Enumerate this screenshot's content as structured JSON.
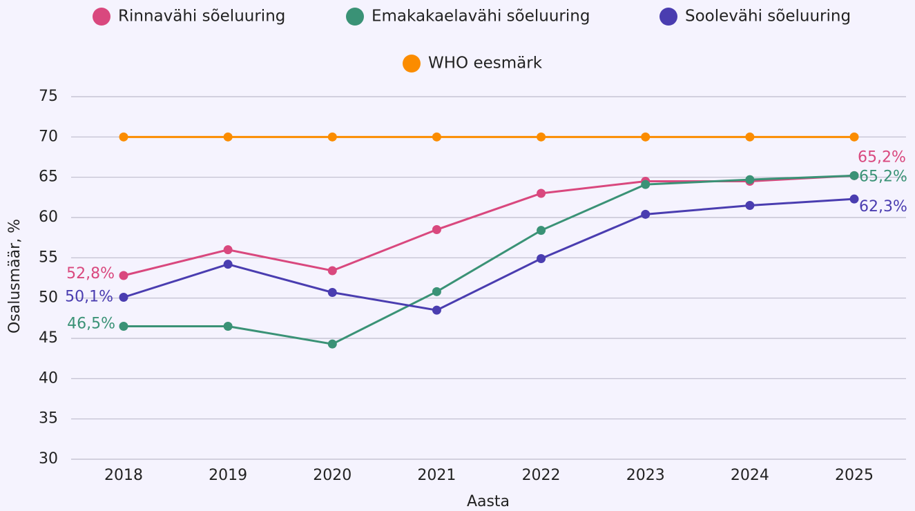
{
  "chart_data": {
    "type": "line",
    "xlabel": "Aasta",
    "ylabel": "Osalusmäär, %",
    "categories": [
      "2018",
      "2019",
      "2020",
      "2021",
      "2022",
      "2023",
      "2024",
      "2025"
    ],
    "series": [
      {
        "name": "Rinnavähi sõeluuring",
        "color": "#d9487e",
        "values": [
          52.8,
          56.0,
          53.4,
          58.5,
          63.0,
          64.5,
          64.5,
          65.2
        ],
        "value_labels": [
          "52,8%",
          null,
          null,
          null,
          null,
          null,
          null,
          "65,2%"
        ]
      },
      {
        "name": "Emakakaelavähi sõeluuring",
        "color": "#3a9276",
        "values": [
          46.5,
          46.5,
          44.3,
          50.8,
          58.4,
          64.1,
          64.7,
          65.2
        ],
        "value_labels": [
          "46,5%",
          null,
          null,
          null,
          null,
          null,
          null,
          "65,2%"
        ]
      },
      {
        "name": "Soolevähi sõeluuring",
        "color": "#4a3db0",
        "values": [
          50.1,
          54.2,
          50.7,
          48.5,
          54.9,
          60.4,
          61.5,
          62.3
        ],
        "value_labels": [
          "50,1%",
          null,
          null,
          null,
          null,
          null,
          null,
          "62,3%"
        ]
      },
      {
        "name": "WHO eesmärk",
        "color": "#fb8c00",
        "values": [
          70,
          70,
          70,
          70,
          70,
          70,
          70,
          70
        ]
      }
    ],
    "ylim": [
      30,
      75
    ],
    "yticks": [
      30,
      35,
      40,
      45,
      50,
      55,
      60,
      65,
      70,
      75
    ],
    "grid": true,
    "legend": "top"
  }
}
